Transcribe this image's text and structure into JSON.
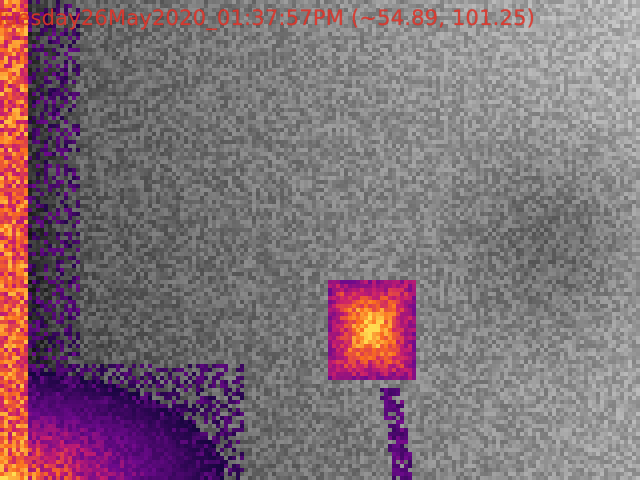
{
  "overlay": {
    "timestamp_text": "Tuesday26May2020_01:37:57PM (~54.89, 101.25)"
  },
  "colors": {
    "overlay_text": "#e0352a",
    "palette_low": "#1a0a3a",
    "palette_mid": "#c41e8a",
    "palette_high": "#ffcc33"
  }
}
